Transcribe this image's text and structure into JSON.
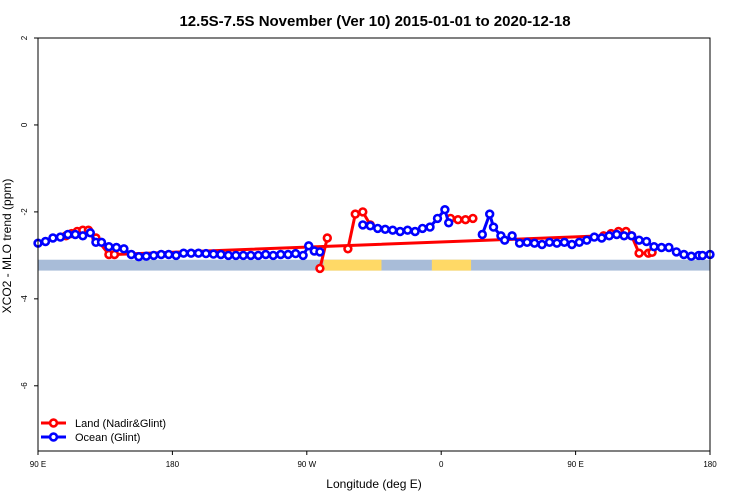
{
  "chart_data": {
    "type": "line",
    "title": "12.5S-7.5S November (Ver 10)   2015-01-01 to 2020-12-18",
    "xlabel": "Longitude (deg E)",
    "ylabel": "XCO2 - MLO trend (ppm)",
    "xlim": [
      90,
      450
    ],
    "ylim": [
      -7.5,
      2.0
    ],
    "x_ticks": [
      {
        "value": 90,
        "label": "90 E"
      },
      {
        "value": 162,
        "label": "180"
      },
      {
        "value": 234,
        "label": "90 W"
      },
      {
        "value": 306,
        "label": "0"
      },
      {
        "value": 378,
        "label": "90 E"
      },
      {
        "value": 450,
        "label": "180"
      }
    ],
    "y_ticks": [
      {
        "value": 2,
        "label": "2"
      },
      {
        "value": 0,
        "label": "0"
      },
      {
        "value": -2,
        "label": "-2"
      },
      {
        "value": -4,
        "label": "-4"
      },
      {
        "value": -6,
        "label": "-6"
      }
    ],
    "grid": false,
    "legend_position": "bottom-left",
    "surface_band": {
      "y_range": [
        -3.35,
        -3.1
      ],
      "ocean_color": "#a8bcd8",
      "land_color": "#ffd966",
      "land_segments": [
        [
          243,
          274
        ],
        [
          301,
          322
        ]
      ]
    },
    "series": [
      {
        "name": "Land (Nadir&Glint)",
        "color": "#ff0000",
        "x": [
          105,
          108,
          111,
          114,
          117,
          121,
          128,
          131,
          393,
          397,
          401,
          405,
          408,
          412,
          417,
          419
        ],
        "values": [
          -2.55,
          -2.5,
          -2.45,
          -2.42,
          -2.42,
          -2.6,
          -2.98,
          -2.98,
          -2.55,
          -2.5,
          -2.45,
          -2.45,
          -2.55,
          -2.95,
          -2.95,
          -2.93
        ]
      },
      {
        "name": "Land (Nadir&Glint)",
        "color": "#ff0000",
        "x": [
          241,
          245
        ],
        "values": [
          -3.3,
          -2.6
        ]
      },
      {
        "name": "Land (Nadir&Glint)",
        "color": "#ff0000",
        "x": [
          256,
          260,
          264,
          268
        ],
        "values": [
          -2.85,
          -2.05,
          -2.0,
          -2.3
        ]
      },
      {
        "name": "Land (Nadir&Glint)",
        "color": "#ff0000",
        "x": [
          311,
          315,
          319,
          323
        ],
        "values": [
          -2.15,
          -2.18,
          -2.18,
          -2.15
        ]
      },
      {
        "name": "Ocean (Glint)",
        "color": "#0000ff",
        "x": [
          90,
          94,
          98,
          102,
          106,
          110,
          114,
          118,
          121,
          124,
          128,
          132,
          136,
          140,
          144,
          148,
          152,
          156,
          160,
          164,
          168,
          172,
          176,
          180,
          184,
          188,
          192,
          196,
          200,
          204,
          208,
          212,
          216,
          220,
          224,
          228,
          232,
          235,
          238,
          241
        ],
        "values": [
          -2.72,
          -2.68,
          -2.6,
          -2.58,
          -2.52,
          -2.52,
          -2.55,
          -2.48,
          -2.7,
          -2.7,
          -2.8,
          -2.82,
          -2.85,
          -2.98,
          -3.03,
          -3.02,
          -3.0,
          -2.98,
          -2.98,
          -3.0,
          -2.95,
          -2.95,
          -2.95,
          -2.96,
          -2.97,
          -2.98,
          -3.0,
          -3.0,
          -3.0,
          -3.0,
          -3.0,
          -2.98,
          -3.0,
          -2.98,
          -2.98,
          -2.96,
          -3.0,
          -2.78,
          -2.9,
          -2.92
        ]
      },
      {
        "name": "Ocean (Glint)",
        "color": "#0000ff",
        "x": [
          264,
          268,
          272,
          276,
          280,
          284,
          288,
          292,
          296,
          300,
          304,
          308,
          310
        ],
        "values": [
          -2.3,
          -2.32,
          -2.38,
          -2.4,
          -2.42,
          -2.45,
          -2.42,
          -2.45,
          -2.38,
          -2.35,
          -2.15,
          -1.95,
          -2.25
        ]
      },
      {
        "name": "Ocean (Glint)",
        "color": "#0000ff",
        "x": [
          328,
          332,
          334,
          338,
          340,
          344,
          348,
          352,
          356,
          360,
          364,
          368,
          372,
          376,
          380,
          384,
          388,
          392,
          396,
          400,
          404,
          408,
          412,
          416,
          420,
          424,
          428,
          432,
          436,
          440,
          444,
          446,
          450
        ],
        "values": [
          -2.52,
          -2.05,
          -2.35,
          -2.55,
          -2.65,
          -2.55,
          -2.72,
          -2.7,
          -2.72,
          -2.75,
          -2.7,
          -2.72,
          -2.7,
          -2.75,
          -2.7,
          -2.65,
          -2.58,
          -2.6,
          -2.55,
          -2.52,
          -2.55,
          -2.55,
          -2.65,
          -2.68,
          -2.8,
          -2.82,
          -2.82,
          -2.92,
          -2.98,
          -3.02,
          -3.0,
          -3.0,
          -2.98
        ]
      }
    ]
  }
}
